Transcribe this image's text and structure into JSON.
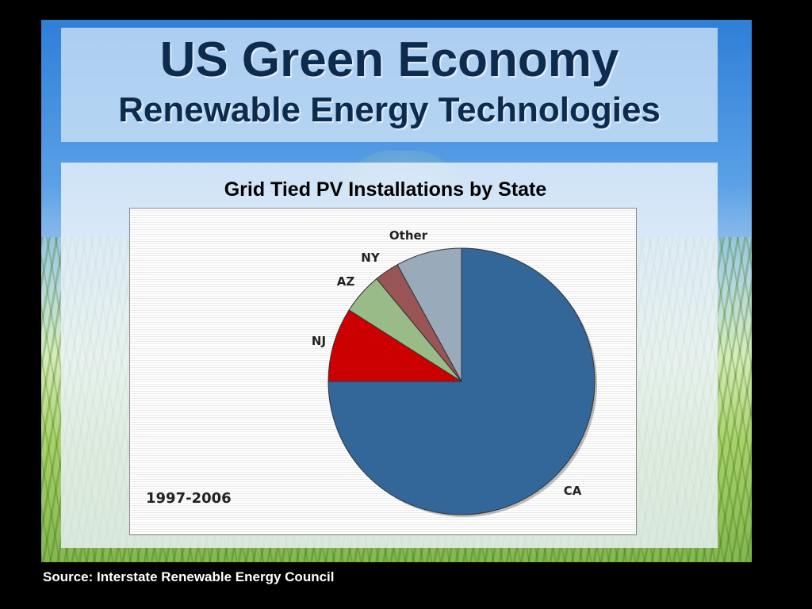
{
  "title": "US Green Economy",
  "subtitle": "Renewable Energy Technologies",
  "source": "Source:  Interstate Renewable Energy Council",
  "chart_data": {
    "type": "pie",
    "title": "Grid Tied PV Installations by State",
    "period_label": "1997-2006",
    "slices": [
      {
        "label": "CA",
        "value": 75,
        "color": "#336699"
      },
      {
        "label": "NJ",
        "value": 9,
        "color": "#cc0000"
      },
      {
        "label": "AZ",
        "value": 5,
        "color": "#99bb88"
      },
      {
        "label": "NY",
        "value": 3,
        "color": "#995555"
      },
      {
        "label": "Other",
        "value": 8,
        "color": "#99aabb"
      }
    ]
  }
}
